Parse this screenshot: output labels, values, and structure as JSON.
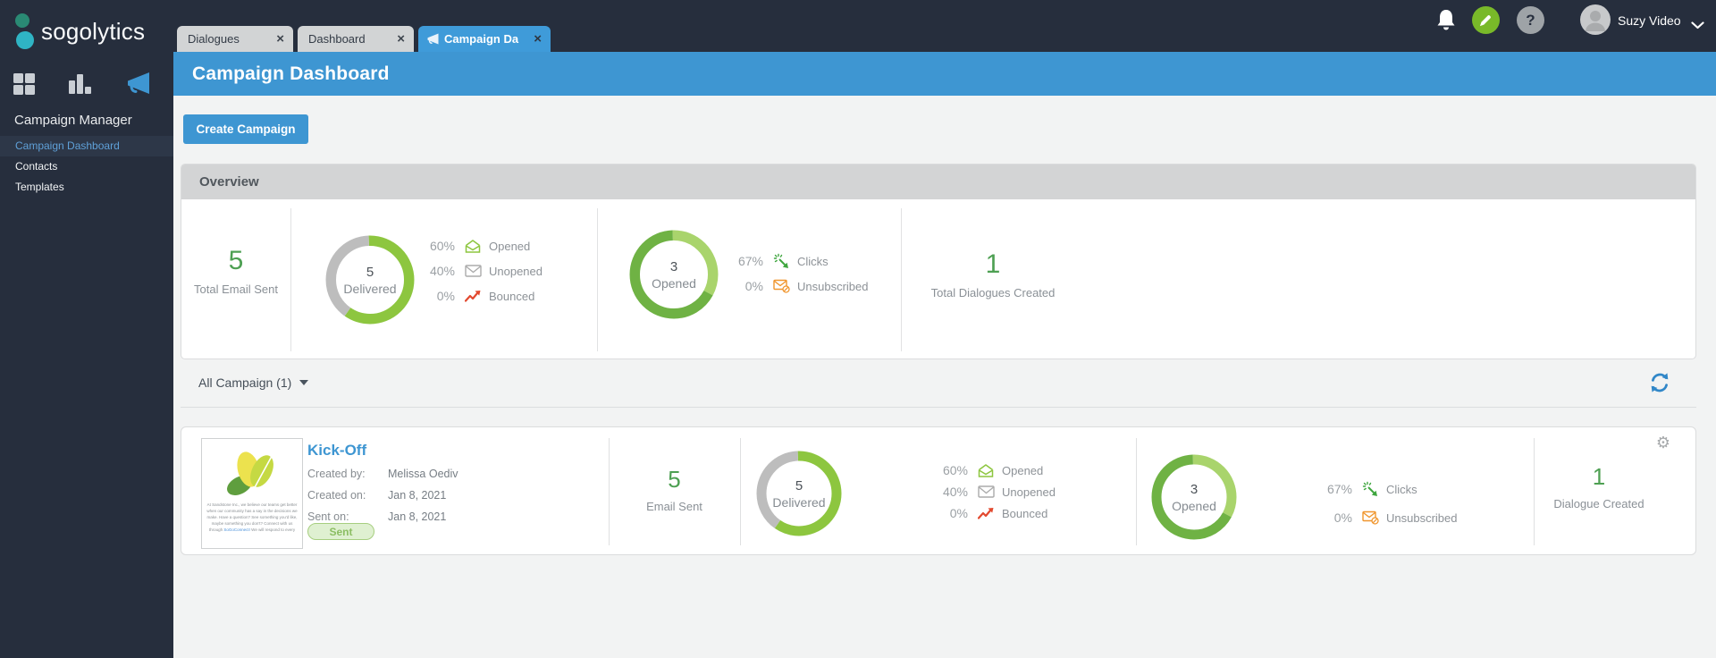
{
  "sidebar": {
    "logo_text": "sogolytics",
    "section_title": "Campaign Manager",
    "items": [
      {
        "label": "Campaign Dashboard",
        "active": true
      },
      {
        "label": "Contacts",
        "active": false
      },
      {
        "label": "Templates",
        "active": false
      }
    ]
  },
  "topbar": {
    "tabs": [
      {
        "label": "Dialogues",
        "active": false
      },
      {
        "label": "Dashboard",
        "active": false
      },
      {
        "label": "Campaign Da",
        "active": true
      }
    ],
    "user_name": "Suzy Video"
  },
  "page_header": {
    "title": "Campaign Dashboard"
  },
  "actions": {
    "create_campaign": "Create Campaign"
  },
  "colors": {
    "accent_blue": "#3e96d2",
    "navy": "#262e3d",
    "green_number": "#4ea053",
    "donut_green": "#8dc63f",
    "donut_gray": "#bdbdbd",
    "donut_dark_green": "#6fb244",
    "donut_light_green": "#a9d46c",
    "bounced_red": "#e2492f",
    "unsubscribed_orange": "#f0962e"
  },
  "overview": {
    "title": "Overview",
    "total_email_sent": {
      "value": "5",
      "label": "Total Email Sent"
    },
    "delivered_stats": [
      {
        "pct": "60%",
        "icon": "opened-envelope-icon",
        "label": "Opened"
      },
      {
        "pct": "40%",
        "icon": "closed-envelope-icon",
        "label": "Unopened"
      },
      {
        "pct": "0%",
        "icon": "bounced-arrow-icon",
        "label": "Bounced"
      }
    ],
    "opened_stats": [
      {
        "pct": "67%",
        "icon": "clicks-icon",
        "label": "Clicks"
      },
      {
        "pct": "0%",
        "icon": "unsubscribed-icon",
        "label": "Unsubscribed"
      }
    ],
    "total_dialogues": {
      "value": "1",
      "label": "Total Dialogues Created"
    }
  },
  "campaign_filter": {
    "label": "All Campaign (1)"
  },
  "campaign": {
    "name": "Kick-Off",
    "fields": [
      {
        "label": "Created by:",
        "value": "Melissa Oediv"
      },
      {
        "label": "Created on:",
        "value": "Jan 8, 2021"
      },
      {
        "label": "Sent on:",
        "value": "Jan 8, 2021"
      }
    ],
    "status": "Sent",
    "thumbnail_lines": [
      "At Sandstone Inc., we believe our teams get better",
      "when our community has a say in the decisions we",
      "make. Have a question? See something you'd like,",
      "maybe something you don't? Connect with us"
    ],
    "thumbnail_last_line": {
      "pre": "through ",
      "link": "SoGoConnect!",
      "post": " We will respond to every"
    },
    "email_sent": {
      "value": "5",
      "label": "Email Sent"
    },
    "delivered_stats": [
      {
        "pct": "60%",
        "icon": "opened-envelope-icon",
        "label": "Opened"
      },
      {
        "pct": "40%",
        "icon": "closed-envelope-icon",
        "label": "Unopened"
      },
      {
        "pct": "0%",
        "icon": "bounced-arrow-icon",
        "label": "Bounced"
      }
    ],
    "opened_stats": [
      {
        "pct": "67%",
        "icon": "clicks-icon",
        "label": "Clicks"
      },
      {
        "pct": "0%",
        "icon": "unsubscribed-icon",
        "label": "Unsubscribed"
      }
    ],
    "dialogue_created": {
      "value": "1",
      "label": "Dialogue Created"
    }
  },
  "chart_data": [
    {
      "type": "pie",
      "variant": "donut",
      "context": "overview-delivered",
      "center_value": "5",
      "center_label": "Delivered",
      "segments": [
        {
          "label": "Opened",
          "value": 60,
          "color": "#8dc63f"
        },
        {
          "label": "Unopened",
          "value": 40,
          "color": "#bdbdbd"
        }
      ]
    },
    {
      "type": "pie",
      "variant": "donut",
      "context": "overview-opened",
      "center_value": "3",
      "center_label": "Opened",
      "segments": [
        {
          "label": "Not clicked",
          "value": 33,
          "color": "#a9d46c"
        },
        {
          "label": "Clicks",
          "value": 67,
          "color": "#6fb244"
        }
      ]
    },
    {
      "type": "pie",
      "variant": "donut",
      "context": "campaign-delivered",
      "center_value": "5",
      "center_label": "Delivered",
      "segments": [
        {
          "label": "Opened",
          "value": 60,
          "color": "#8dc63f"
        },
        {
          "label": "Unopened",
          "value": 40,
          "color": "#bdbdbd"
        }
      ]
    },
    {
      "type": "pie",
      "variant": "donut",
      "context": "campaign-opened",
      "center_value": "3",
      "center_label": "Opened",
      "segments": [
        {
          "label": "Not clicked",
          "value": 33,
          "color": "#a9d46c"
        },
        {
          "label": "Clicks",
          "value": 67,
          "color": "#6fb244"
        }
      ]
    }
  ]
}
